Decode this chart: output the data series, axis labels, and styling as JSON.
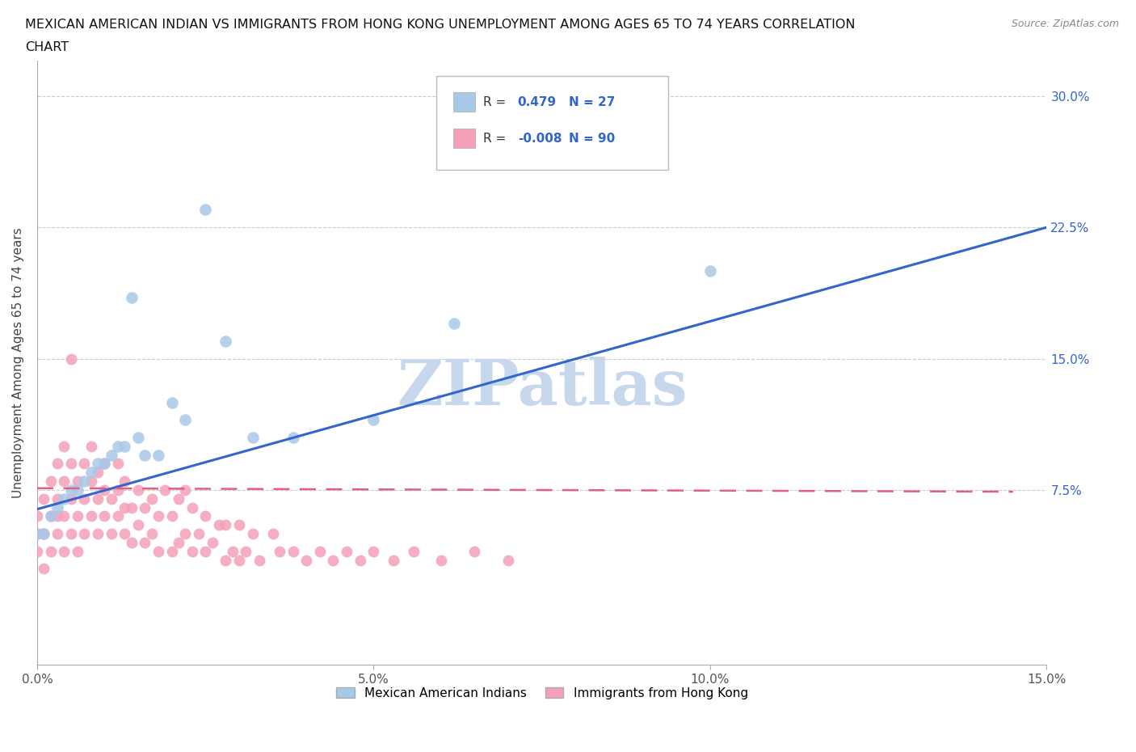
{
  "title_line1": "MEXICAN AMERICAN INDIAN VS IMMIGRANTS FROM HONG KONG UNEMPLOYMENT AMONG AGES 65 TO 74 YEARS CORRELATION",
  "title_line2": "CHART",
  "source": "Source: ZipAtlas.com",
  "ylabel": "Unemployment Among Ages 65 to 74 years",
  "xlim": [
    0.0,
    0.15
  ],
  "ylim": [
    -0.025,
    0.32
  ],
  "xticks": [
    0.0,
    0.05,
    0.1,
    0.15
  ],
  "yticks": [
    0.075,
    0.15,
    0.225,
    0.3
  ],
  "ytick_labels": [
    "7.5%",
    "15.0%",
    "22.5%",
    "30.0%"
  ],
  "xtick_labels": [
    "0.0%",
    "",
    "5.0%",
    "",
    "10.0%",
    "",
    "15.0%"
  ],
  "blue_R": 0.479,
  "blue_N": 27,
  "pink_R": -0.008,
  "pink_N": 90,
  "blue_color": "#A8C8E8",
  "pink_color": "#F4A0B8",
  "blue_line_color": "#3366CC",
  "pink_line_color": "#E06080",
  "watermark": "ZIPatlas",
  "watermark_color": "#C8D8EC",
  "legend_label_blue": "Mexican American Indians",
  "legend_label_pink": "Immigrants from Hong Kong",
  "blue_line_x0": 0.0,
  "blue_line_y0": 0.064,
  "blue_line_x1": 0.15,
  "blue_line_y1": 0.225,
  "pink_line_x0": 0.0,
  "pink_line_x1": 0.145,
  "pink_line_y0": 0.076,
  "pink_line_y1": 0.074,
  "blue_scatter_x": [
    0.0,
    0.001,
    0.002,
    0.003,
    0.004,
    0.005,
    0.006,
    0.007,
    0.008,
    0.009,
    0.01,
    0.011,
    0.012,
    0.013,
    0.014,
    0.015,
    0.016,
    0.018,
    0.02,
    0.022,
    0.025,
    0.028,
    0.032,
    0.038,
    0.05,
    0.062,
    0.1
  ],
  "blue_scatter_y": [
    0.05,
    0.05,
    0.06,
    0.065,
    0.07,
    0.075,
    0.075,
    0.08,
    0.085,
    0.09,
    0.09,
    0.095,
    0.1,
    0.1,
    0.185,
    0.105,
    0.095,
    0.095,
    0.125,
    0.115,
    0.235,
    0.16,
    0.105,
    0.105,
    0.115,
    0.17,
    0.2
  ],
  "pink_scatter_x": [
    0.0,
    0.0,
    0.0,
    0.001,
    0.001,
    0.001,
    0.002,
    0.002,
    0.002,
    0.003,
    0.003,
    0.003,
    0.003,
    0.004,
    0.004,
    0.004,
    0.004,
    0.005,
    0.005,
    0.005,
    0.005,
    0.006,
    0.006,
    0.006,
    0.007,
    0.007,
    0.007,
    0.008,
    0.008,
    0.008,
    0.009,
    0.009,
    0.009,
    0.01,
    0.01,
    0.01,
    0.011,
    0.011,
    0.012,
    0.012,
    0.012,
    0.013,
    0.013,
    0.013,
    0.014,
    0.014,
    0.015,
    0.015,
    0.016,
    0.016,
    0.017,
    0.017,
    0.018,
    0.018,
    0.019,
    0.02,
    0.02,
    0.021,
    0.021,
    0.022,
    0.022,
    0.023,
    0.023,
    0.024,
    0.025,
    0.025,
    0.026,
    0.027,
    0.028,
    0.028,
    0.029,
    0.03,
    0.03,
    0.031,
    0.032,
    0.033,
    0.035,
    0.036,
    0.038,
    0.04,
    0.042,
    0.044,
    0.046,
    0.048,
    0.05,
    0.053,
    0.056,
    0.06,
    0.065,
    0.07
  ],
  "pink_scatter_y": [
    0.04,
    0.05,
    0.06,
    0.03,
    0.05,
    0.07,
    0.04,
    0.06,
    0.08,
    0.05,
    0.06,
    0.07,
    0.09,
    0.04,
    0.06,
    0.08,
    0.1,
    0.05,
    0.07,
    0.09,
    0.15,
    0.04,
    0.06,
    0.08,
    0.05,
    0.07,
    0.09,
    0.06,
    0.08,
    0.1,
    0.05,
    0.07,
    0.085,
    0.06,
    0.075,
    0.09,
    0.05,
    0.07,
    0.06,
    0.075,
    0.09,
    0.05,
    0.065,
    0.08,
    0.045,
    0.065,
    0.055,
    0.075,
    0.045,
    0.065,
    0.05,
    0.07,
    0.04,
    0.06,
    0.075,
    0.04,
    0.06,
    0.045,
    0.07,
    0.05,
    0.075,
    0.04,
    0.065,
    0.05,
    0.04,
    0.06,
    0.045,
    0.055,
    0.035,
    0.055,
    0.04,
    0.035,
    0.055,
    0.04,
    0.05,
    0.035,
    0.05,
    0.04,
    0.04,
    0.035,
    0.04,
    0.035,
    0.04,
    0.035,
    0.04,
    0.035,
    0.04,
    0.035,
    0.04,
    0.035
  ]
}
